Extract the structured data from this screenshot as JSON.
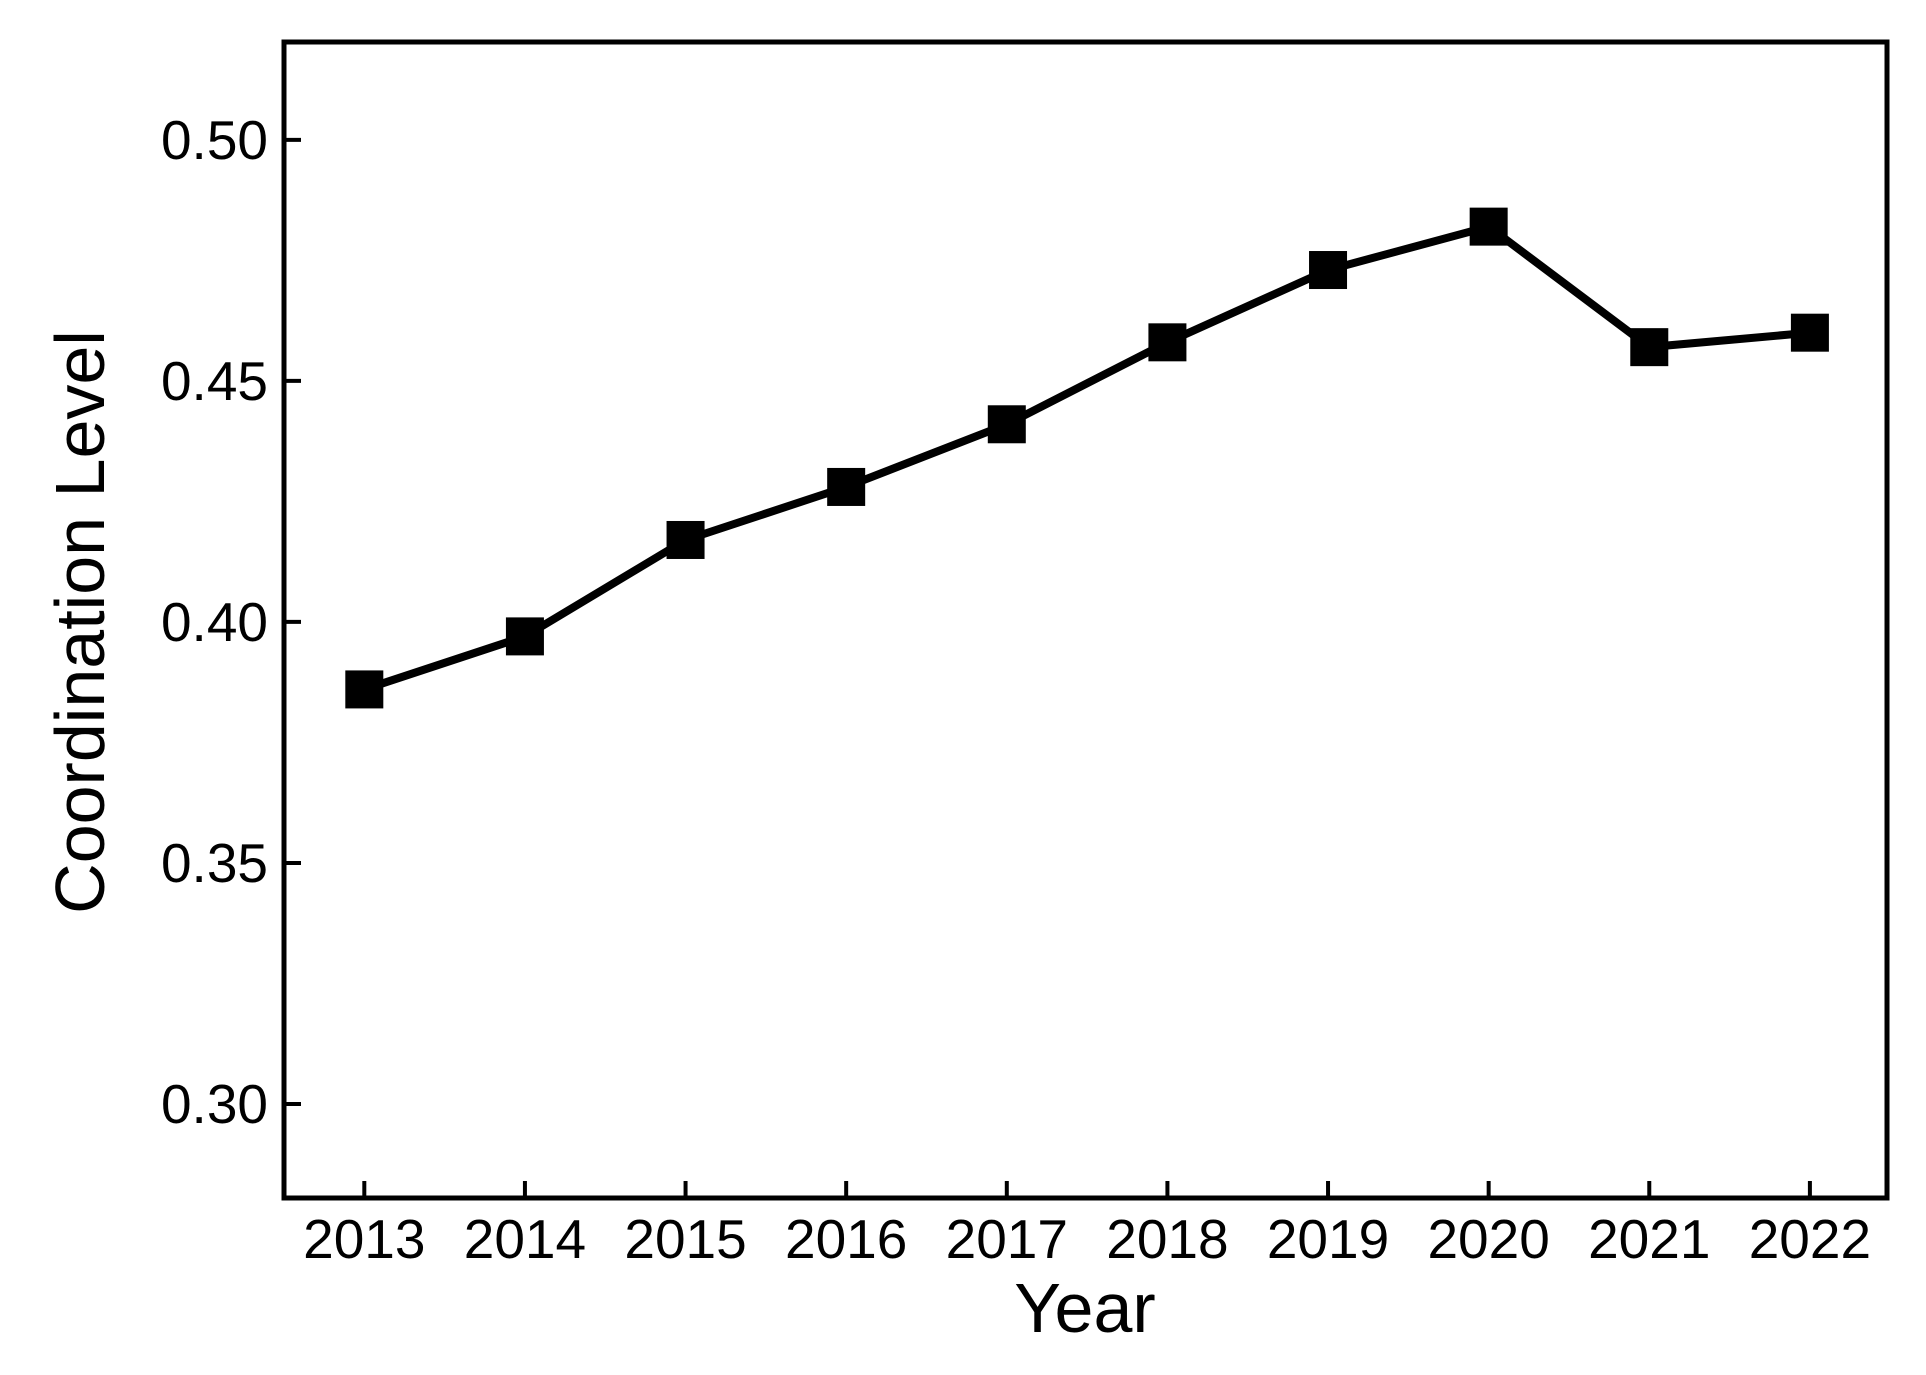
{
  "figure": {
    "background_color": "#ffffff",
    "ink_color": "#000000"
  },
  "chart_data": {
    "type": "line",
    "title": "",
    "xlabel": "Year",
    "ylabel": "Coordination Level",
    "x": [
      2013,
      2014,
      2015,
      2016,
      2017,
      2018,
      2019,
      2020,
      2021,
      2022
    ],
    "xtick_labels": [
      "2013",
      "2014",
      "2015",
      "2016",
      "2017",
      "2018",
      "2019",
      "2020",
      "2021",
      "2022"
    ],
    "series": [
      {
        "name": "Coordination Level",
        "values": [
          0.386,
          0.397,
          0.417,
          0.428,
          0.441,
          0.458,
          0.473,
          0.482,
          0.457,
          0.46
        ]
      }
    ],
    "ytick_values": [
      0.3,
      0.35,
      0.4,
      0.45,
      0.5
    ],
    "ytick_labels": [
      "0.30",
      "0.35",
      "0.40",
      "0.45",
      "0.50"
    ],
    "xlim": [
      2012.5,
      2022.48
    ],
    "ylim": [
      0.2805,
      0.5203
    ],
    "grid": false,
    "legend": "none",
    "marker": "square",
    "line_color": "#000000",
    "marker_color": "#000000",
    "frame": "box",
    "tick_direction": "in"
  }
}
